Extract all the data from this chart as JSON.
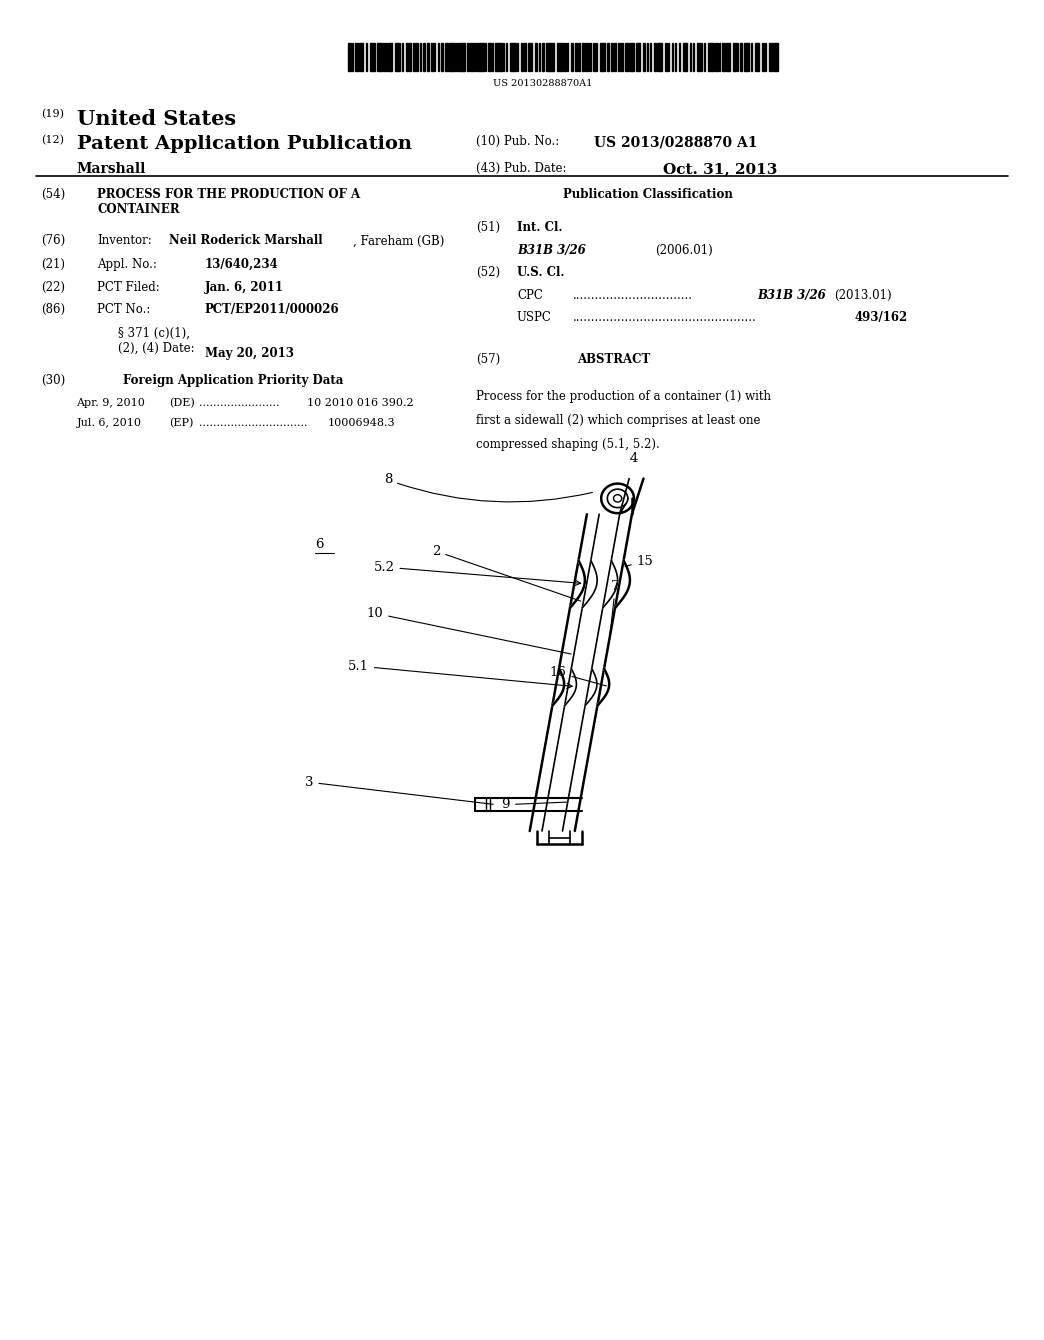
{
  "background_color": "#ffffff",
  "barcode_text": "US 20130288870A1",
  "header": {
    "line1_num": "(19)",
    "line1_text": "United States",
    "line2_num": "(12)",
    "line2_text": "Patent Application Publication",
    "line2_right_label1": "(10) Pub. No.:",
    "line2_right_val1": "US 2013/0288870 A1",
    "line3_left": "Marshall",
    "line3_right_label": "(43) Pub. Date:",
    "line3_right_val": "Oct. 31, 2013"
  },
  "left_col": {
    "title_num": "(54)",
    "title_text": "PROCESS FOR THE PRODUCTION OF A\nCONTAINER",
    "inventor_num": "(76)",
    "inventor_label": "Inventor:",
    "inventor_name": "Neil Roderick Marshall",
    "inventor_loc": ", Fareham (GB)",
    "appl_num": "(21)",
    "appl_label": "Appl. No.:",
    "appl_val": "13/640,234",
    "pct_filed_num": "(22)",
    "pct_filed_label": "PCT Filed:",
    "pct_filed_val": "Jan. 6, 2011",
    "pct_no_num": "(86)",
    "pct_no_label": "PCT No.:",
    "pct_no_val": "PCT/EP2011/000026",
    "section_text": "§ 371 (c)(1),\n(2), (4) Date:",
    "section_val": "May 20, 2013",
    "foreign_num": "(30)",
    "foreign_title": "Foreign Application Priority Data",
    "priority1_date": "Apr. 9, 2010",
    "priority1_country": "(DE)",
    "priority1_dots": ".......................",
    "priority1_num": "10 2010 016 390.2",
    "priority2_date": "Jul. 6, 2010",
    "priority2_country": "(EP)",
    "priority2_dots": "...............................",
    "priority2_num": "10006948.3"
  },
  "right_col": {
    "pub_class_title": "Publication Classification",
    "int_cl_num": "(51)",
    "int_cl_label": "Int. Cl.",
    "int_cl_code": "B31B 3/26",
    "int_cl_year": "(2006.01)",
    "us_cl_num": "(52)",
    "us_cl_label": "U.S. Cl.",
    "cpc_label": "CPC",
    "cpc_dots": "................................",
    "cpc_val": "B31B 3/26",
    "cpc_year": "(2013.01)",
    "uspc_label": "USPC",
    "uspc_dots": ".................................................",
    "uspc_val": "493/162",
    "abstract_num": "(57)",
    "abstract_title": "ABSTRACT",
    "abstract_text": "Process for the production of a container (1) with first a sidewall (2) which comprises at least one compressed shaping (5.1, 5.2)."
  }
}
